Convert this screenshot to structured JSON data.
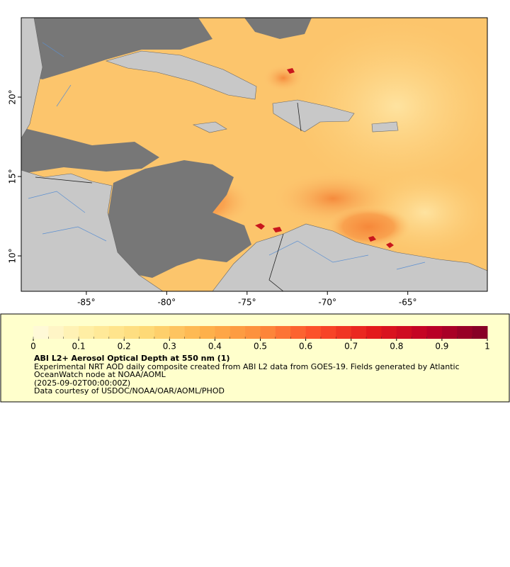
{
  "chart_data": {
    "type": "map",
    "xlim": [
      -89.05,
      -60.05
    ],
    "ylim": [
      7.77,
      25
    ],
    "xticks": [
      {
        "value": -85,
        "label": "-85°"
      },
      {
        "value": -80,
        "label": "-80°"
      },
      {
        "value": -75,
        "label": "-75°"
      },
      {
        "value": -70,
        "label": "-70°"
      },
      {
        "value": -65,
        "label": "-65°"
      }
    ],
    "yticks": [
      {
        "value": 10,
        "label": "10°"
      },
      {
        "value": 15,
        "label": "15°"
      },
      {
        "value": 20,
        "label": "20°"
      }
    ],
    "colorbar": {
      "lim": [
        0,
        1
      ],
      "ticks": [
        0,
        0.1,
        0.2,
        0.3,
        0.4,
        0.5,
        0.6,
        0.7,
        0.8,
        0.9,
        1
      ],
      "colors": [
        "#fffbe0",
        "#ffeda0",
        "#fed976",
        "#feb24c",
        "#fd8d3c",
        "#fc4e2a",
        "#e31a1c",
        "#bd0026",
        "#800026"
      ]
    },
    "title": "ABI L2+ Aerosol Optical Depth at 550 nm (1)",
    "description": "Experimental NRT AOD daily composite created from ABI L2 data from GOES-19. Fields generated by Atlantic OceanWatch node at NOAA/AOML",
    "date": "(2025-09-02T00:00:00Z)",
    "credit": "Data courtesy of USDOC/NOAA/OAR/AOML/PHOD"
  }
}
